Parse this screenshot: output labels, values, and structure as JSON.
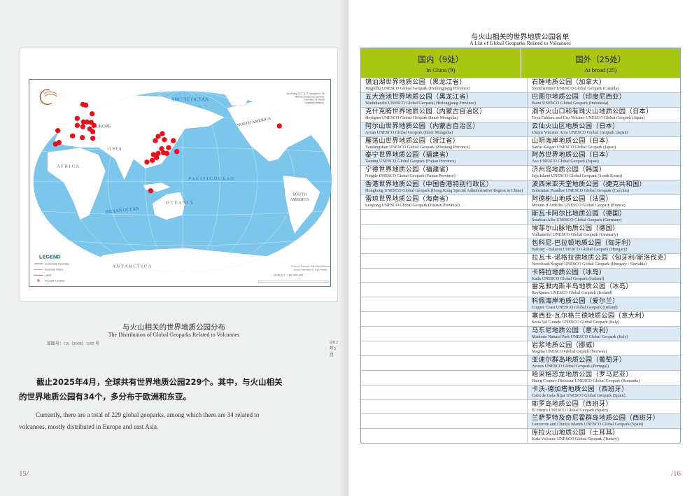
{
  "left_page": {
    "map": {
      "labels": {
        "arctic": "ARCTIC OCEAN",
        "north_america": "NORTH AMERICA",
        "europe": "EUROPE",
        "asia": "A S I A",
        "africa": "A F R I C A",
        "pacific": "P A C I F I C   O C E A N",
        "south_america_1": "SOUTH",
        "south_america_2": "AMERICA",
        "indian": "INDIAN OCEAN",
        "oceania": "O C E A N I A",
        "antarctica": "A N T A R C T I C A"
      },
      "note": [
        "As of May 2017, 127 Geoparks in 35",
        "Member States are currently",
        "members of Global",
        "Geoparks Network."
      ],
      "legend": {
        "title": "LEGEND",
        "items": [
          "Continental Boundary",
          "Perennial Rivers",
          "Lakes",
          "Geopark Location"
        ]
      },
      "projection": [
        "Polyconic Projection With Equal-difference",
        "Division Meridians On Each Parallel"
      ],
      "scale": "SCALE  1 : 180 000 000",
      "review_number": "审图号：GS（2008）1195 号",
      "date": "2012年5月",
      "colors": {
        "ocean": "#7cc6ec",
        "land": "#ffffff",
        "marker": "#e8101a"
      }
    },
    "caption_zh": "与火山相关的世界地质公园分布",
    "caption_en": "The Distribution of Global Geoparks Related to Volcanoes",
    "paragraph_zh": "截止2025年4月，全球共有世界地质公园229个。其中，与火山相关的世界地质公园有34个，多分布于欧洲和东亚。",
    "paragraph_en": "Currently, there are a total of 229 global geoparks, among which there are 34 related to volcanoes, mostly distributed in Europe and east Asia.",
    "page_number": "15/"
  },
  "right_page": {
    "title_zh": "与火山相关的世界地质公园名单",
    "title_en": "A List of Global Geoparks Related to Volcanoes",
    "header": {
      "china_zh": "国内（9处）",
      "china_en": "In China (9)",
      "abroad_zh": "国外（25处）",
      "abroad_en": "At broad (25)",
      "color": "#a8c712"
    },
    "china": [
      {
        "zh": "镜泊湖世界地质公园（黑龙江省）",
        "en": "Jingpohu UNESCO Global Geopark (Heilongjiang Province)"
      },
      {
        "zh": "五大连池世界地质公园（黑龙江省）",
        "en": "Wudalianchi UNESCO Global Geopark (Heilongjiang Province)"
      },
      {
        "zh": "克什克腾世界地质公园（内蒙古自治区）",
        "en": "Hexigten UNESCO Global Geopark (Inner Mongolia)"
      },
      {
        "zh": "阿尔山世界地质公园（内蒙古自治区）",
        "en": "Arxan UNESCO Global Geopark (Inner Mongolia)"
      },
      {
        "zh": "雁荡山世界地质公园（浙江省）",
        "en": "Yandangshan UNESCO Global Geopark (Zhejiang Province)"
      },
      {
        "zh": "泰宁世界地质公园（福建省）",
        "en": "Taining UNESCO Global Geopark (Fujian Province)"
      },
      {
        "zh": "宁德世界地质公园（福建省）",
        "en": "Ningde UNESCO Global Geopark (Fujian Province)"
      },
      {
        "zh": "香港世界地质公园（中国香港特别行政区）",
        "en": "Hongkong UNESCO Global Geopark (Hong Kong Special Administrative Region in China)"
      },
      {
        "zh": "雷琼世界地质公园（海南省）",
        "en": "Leiqiong UNESCO Global Geopark (Hainan Province)"
      }
    ],
    "abroad": [
      {
        "zh": "石锤地质公园（加拿大）",
        "en": "Stonehammer UNESCO Global Geopark (Canada)"
      },
      {
        "zh": "巴图尔地质公园（印度尼西亚）",
        "en": "Batur UNESCO Global Geopark (Indonesia)"
      },
      {
        "zh": "洞爷火山口和有珠火山地质公园（日本）",
        "en": "Toya Caldera and Usu Volcano UNESCO Global Geopark (Japan)"
      },
      {
        "zh": "云仙火山区地质公园（日本）",
        "en": "Unzen Volcanic Area UNESCO Global Geopark (Japan)"
      },
      {
        "zh": "山阴海岸地质公园（日本）",
        "en": "San'in Kaigan UNESCO Global Geopark (Japan)"
      },
      {
        "zh": "阿苏世界地质公园（日本）",
        "en": "Aso UNESCO Global Geopark (Japan)"
      },
      {
        "zh": "济州岛地质公园（韩国）",
        "en": "Jeju Island UNESCO Global Geopark (South Korea)"
      },
      {
        "zh": "波西米亚天堂地质公园（捷克共和国）",
        "en": "Bohemian Paradise UNESCO Global Geopark (Czechia)"
      },
      {
        "zh": "阿德榭山地质公园（法国）",
        "en": "Mounts d'Ardeche UNESCO Global Geopark (France)"
      },
      {
        "zh": "斯瓦卡阿尔比地质公园（德国）",
        "en": "Swabian Albs UNESCO Global Geopark (Germany)"
      },
      {
        "zh": "埃菲尔山脉地质公园（德国）",
        "en": "Vulkaneifel UNESCO Global Geopark (Germany)"
      },
      {
        "zh": "包科尼-巴拉顿地质公园（匈牙利）",
        "en": "Bakony - Balaton UNESCO Global Geopark (Hungary)"
      },
      {
        "zh": "拉瓦卡-诺格拉德地质公园（匈牙利/斯洛伐克）",
        "en": "Novohrad-Nograd UNESCO Global Geopark (Hungary / Slovakia)"
      },
      {
        "zh": "卡特拉地质公园（冰岛）",
        "en": "Katla UNESCO Global Geopark (Iceland)"
      },
      {
        "zh": "雷克雅内斯半岛地质公园（冰岛）",
        "en": "Reykjanes UNESCO Global Geopark (Iceland)"
      },
      {
        "zh": "科佩海岸地质公园（爱尔兰）",
        "en": "Copper Coast UNESCO Global Geopark (Ireland)"
      },
      {
        "zh": "塞西亚-瓦尔格兰德地质公园（意大利）",
        "en": "Sesia Val Grande UNESCO Global Geopark (Italy)"
      },
      {
        "zh": "马东尼地质公园（意大利）",
        "en": "Madonie Natural Park UNESCO Global Geopark (Italy)"
      },
      {
        "zh": "岩浆地质公园（挪威）",
        "en": "Magma UNESCO Global Gepark (Norway)"
      },
      {
        "zh": "亚速尔群岛地质公园（葡萄牙）",
        "en": "Azores UNESCO Global Geopark (Portugal)"
      },
      {
        "zh": "哈采格恐龙地质公园（罗马尼亚）",
        "en": "Hateg Country Dinosaur UNESCO Global Geopark (Romania)"
      },
      {
        "zh": "卡沃-德加塔地质公园（西班牙）",
        "en": "Cabo de Gata-Nijar UNESCO Global Geopark (Spain)"
      },
      {
        "zh": "耶罗岛地质公园（西班牙）",
        "en": "El Hierro UNESCO Global Geopark (Spain)"
      },
      {
        "zh": "兰萨罗特及奇尼霍群岛地质公园（西班牙）",
        "en": "Lanzarote and Chinijo Islands UNESCO Global Geopark (Spain)"
      },
      {
        "zh": "库拉火山地质公园（土耳其）",
        "en": "Kula Volcanic UNESCO Global Geopark (Turkey)"
      }
    ],
    "row_alt_color": "#dceaf6",
    "page_number": "/16"
  }
}
